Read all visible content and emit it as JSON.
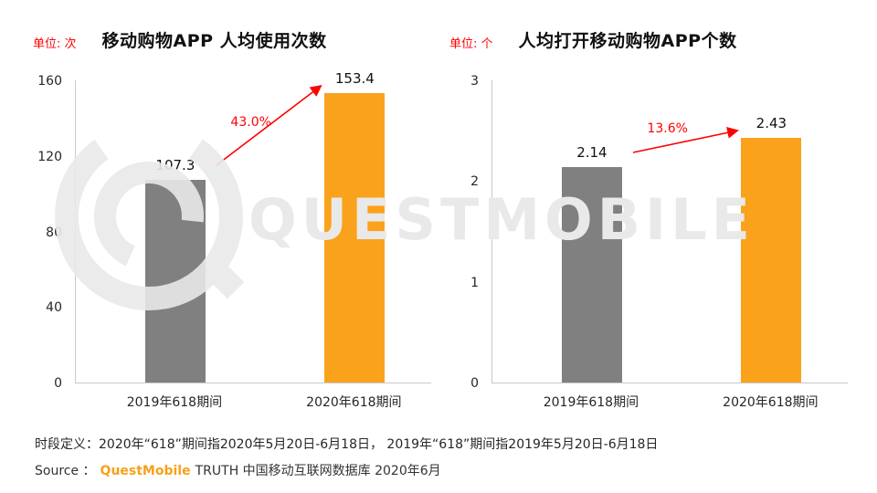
{
  "watermark": {
    "text": "QUESTMOBILE"
  },
  "footer": {
    "definition": "时段定义：2020年“618”期间指2020年5月20日-6月18日， 2019年“618”期间指2019年5月20日-6月18日",
    "source_prefix": "Source ：",
    "source_brand": "QuestMobile",
    "source_rest": "TRUTH 中国移动互联网数据库 2020年6月"
  },
  "chart_data": [
    {
      "type": "bar",
      "title": "移动购物APP 人均使用次数",
      "unit_label": "单位: 次",
      "categories": [
        "2019年618期间",
        "2020年618期间"
      ],
      "values": [
        107.3,
        153.4
      ],
      "value_labels": [
        "107.3",
        "153.4"
      ],
      "growth_label": "43.0%",
      "ylim": [
        0,
        160
      ],
      "yticks": [
        0,
        40,
        80,
        120,
        160
      ],
      "bar_colors": [
        "#808080",
        "#FAA21B"
      ],
      "grid": "off",
      "accent_red": "#ff0000"
    },
    {
      "type": "bar",
      "title": "人均打开移动购物APP个数",
      "unit_label": "单位: 个",
      "categories": [
        "2019年618期间",
        "2020年618期间"
      ],
      "values": [
        2.14,
        2.43
      ],
      "value_labels": [
        "2.14",
        "2.43"
      ],
      "growth_label": "13.6%",
      "ylim": [
        0,
        3
      ],
      "yticks": [
        0,
        1,
        2,
        3
      ],
      "bar_colors": [
        "#808080",
        "#FAA21B"
      ],
      "grid": "off",
      "accent_red": "#ff0000"
    }
  ]
}
